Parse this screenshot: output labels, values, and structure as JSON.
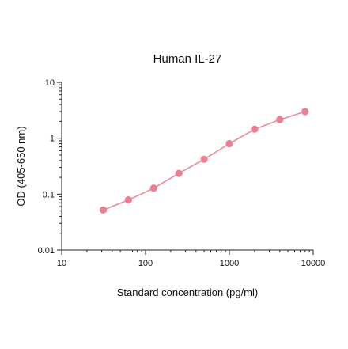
{
  "chart_data": {
    "type": "line",
    "title": "Human IL-27",
    "xlabel": "Standard concentration (pg/ml)",
    "ylabel": "OD (405-650 nm)",
    "x_scale": "log",
    "y_scale": "log",
    "xlim": [
      10,
      10000
    ],
    "ylim": [
      0.01,
      10
    ],
    "x_ticks": [
      "10",
      "100",
      "1000",
      "10000"
    ],
    "y_ticks": [
      "0.01",
      "0.1",
      "1",
      "10"
    ],
    "grid": false,
    "line_color": "#f08a9a",
    "marker_color": "#f07e92",
    "series": [
      {
        "x": [
          31.25,
          62.5,
          125,
          250,
          500,
          1000,
          2000,
          4000,
          8000
        ],
        "y": [
          0.052,
          0.079,
          0.128,
          0.235,
          0.42,
          0.8,
          1.45,
          2.15,
          3.0
        ]
      }
    ]
  }
}
